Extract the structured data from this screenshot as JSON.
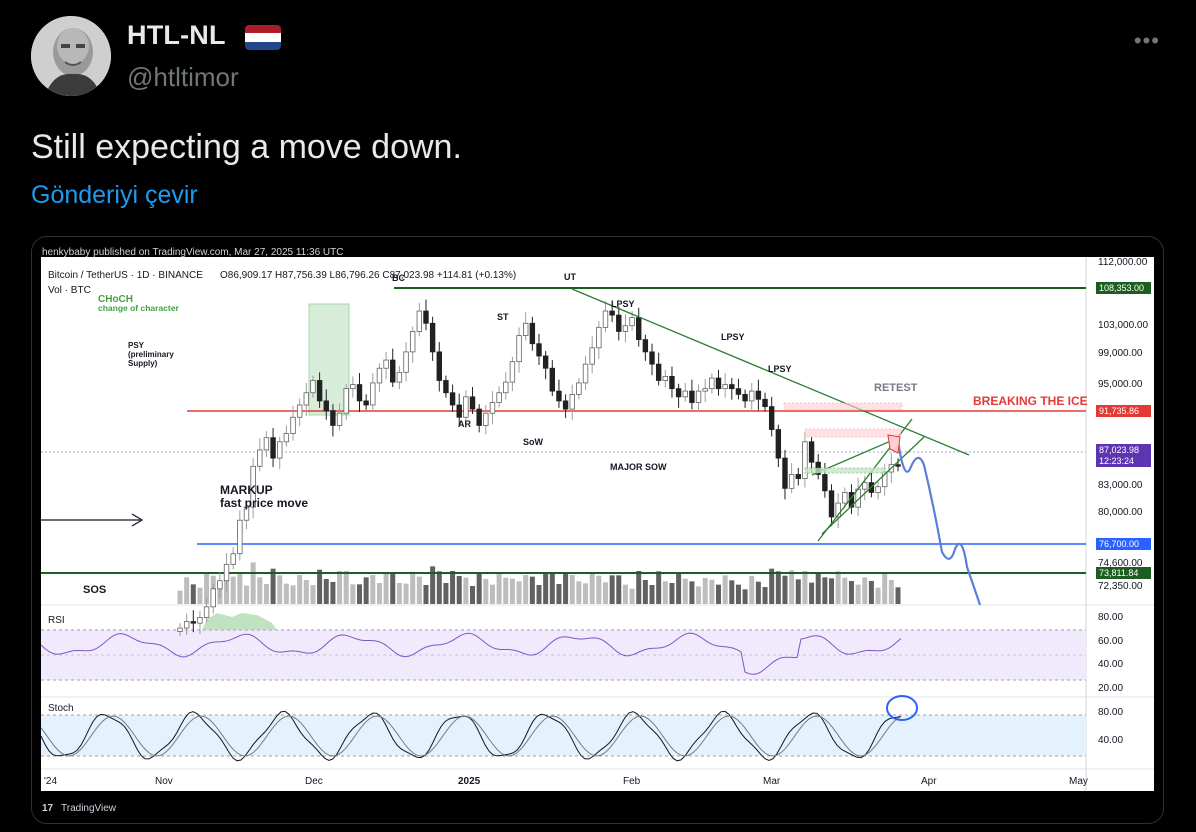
{
  "tweet": {
    "display_name": "HTL-NL",
    "handle": "@htltimor",
    "text": "Still expecting a move down.",
    "translate_label": "Gönderiyi çevir",
    "more_icon": "more-horizontal-icon",
    "flag": "netherlands-flag-icon"
  },
  "chart_header": {
    "publisher": "henkybaby published on TradingView.com, Mar 27, 2025 11:36 UTC",
    "symbol_line": "Bitcoin / TetherUS · 1D · BINANCE",
    "ohlc": "O86,909.17 H87,756.39 L86,796.26 C87,023.98 +114.81 (+0.13%)",
    "volume_label": "Vol · BTC",
    "watermark": "TradingView"
  },
  "annotations": {
    "choch": "CHoCH",
    "choch_sub": "change of character",
    "psy": "PSY",
    "psy_sub1": "(preliminary",
    "psy_sub2": "Supply)",
    "bc": "BC",
    "st": "ST",
    "ar": "AR",
    "sow": "SoW",
    "ut": "UT",
    "lpsy": "LPSY",
    "major_sow": "MAJOR SOW",
    "retest": "RETEST",
    "breaking": "BREAKING THE ICE",
    "markup": "MARKUP",
    "markup_sub": "fast price move",
    "sos": "SOS"
  },
  "price_axis": [
    "112,000.00",
    "103,000.00",
    "99,000.00",
    "95,000.00",
    "83,000.00",
    "80,000.00",
    "74,600.00",
    "72,350.00"
  ],
  "price_tags": {
    "top": "108,353.00",
    "red": "91,735.86",
    "current": "87,023.98",
    "countdown": "12:23:24",
    "blue": "76,700.00",
    "green_low": "73,811.84"
  },
  "rsi": {
    "label": "RSI",
    "ticks": [
      "80.00",
      "60.00",
      "40.00",
      "20.00"
    ]
  },
  "stoch": {
    "label": "Stoch",
    "ticks": [
      "80.00",
      "40.00"
    ]
  },
  "time_axis": [
    "'24",
    "Nov",
    "Dec",
    "2025",
    "Feb",
    "Mar",
    "Apr",
    "May"
  ],
  "chart_data": {
    "type": "candlestick",
    "symbol": "BTCUSDT",
    "interval": "1D",
    "ohlc_last": {
      "open": 86909.17,
      "high": 87756.39,
      "low": 86796.26,
      "close": 87023.98,
      "change": 114.81,
      "change_pct": 0.13
    },
    "levels": [
      108353.0,
      91735.86,
      76700.0,
      73811.84
    ],
    "closes": [
      67200,
      68000,
      67800,
      68500,
      69800,
      72000,
      73000,
      75000,
      76300,
      80400,
      82000,
      87000,
      89000,
      90500,
      88000,
      90000,
      91000,
      93000,
      94500,
      96000,
      97500,
      95000,
      93800,
      92000,
      93500,
      96500,
      97000,
      95000,
      94500,
      97200,
      99000,
      100000,
      97300,
      98500,
      101000,
      103500,
      106000,
      104500,
      101000,
      97500,
      96000,
      94500,
      93000,
      95500,
      94000,
      92000,
      93500,
      94800,
      96000,
      97300,
      99800,
      103000,
      104500,
      102000,
      100500,
      99000,
      96200,
      95000,
      94000,
      95800,
      97200,
      99500,
      101500,
      104000,
      106000,
      105500,
      103500,
      104200,
      105200,
      102500,
      101000,
      99500,
      97500,
      98000,
      96500,
      95500,
      96200,
      94800,
      96200,
      96500,
      97800,
      96500,
      97000,
      96500,
      95800,
      95000,
      96200,
      95200,
      94300,
      91500,
      88000,
      84300,
      86000,
      85500,
      90000,
      87500,
      86000,
      84000,
      80800,
      82500,
      83800,
      82000,
      84200,
      85000,
      83800,
      84500,
      86300,
      87200,
      87000
    ]
  }
}
